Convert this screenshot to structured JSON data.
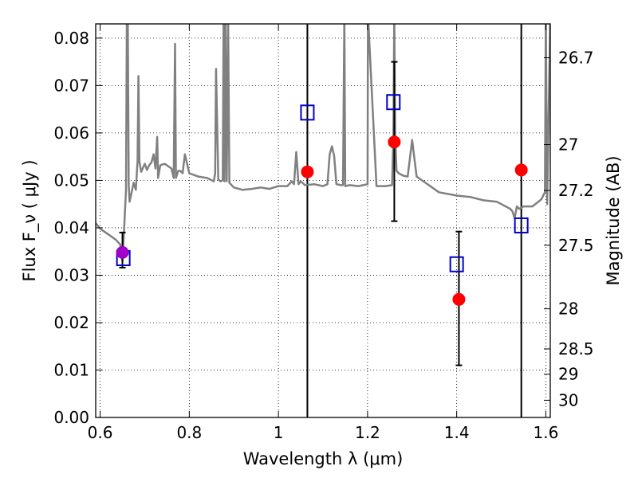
{
  "chart_data": {
    "type": "scatter",
    "xlabel": "Wavelength  λ (μm)",
    "ylabel": "Flux  F_ν  ( μJy )",
    "y2label": "Magnitude (AB)",
    "xlim": [
      0.59,
      1.61
    ],
    "ylim": [
      0.0,
      0.083
    ],
    "xticks": [
      0.6,
      0.8,
      1.0,
      1.2,
      1.4,
      1.6
    ],
    "xtick_labels": [
      "0.6",
      "0.8",
      "1",
      "1.2",
      "1.4",
      "1.6"
    ],
    "yticks": [
      0.0,
      0.01,
      0.02,
      0.03,
      0.04,
      0.05,
      0.06,
      0.07,
      0.08
    ],
    "ytick_labels": [
      "0.00",
      "0.01",
      "0.02",
      "0.03",
      "0.04",
      "0.05",
      "0.06",
      "0.07",
      "0.08"
    ],
    "magnitude_ticks": [
      "26.7",
      "27",
      "27.2",
      "27.5",
      "28",
      "28.5",
      "29",
      "30"
    ],
    "grid": true,
    "vertical_lines": [
      1.065,
      1.545
    ],
    "colors": {
      "model": "#808080",
      "observed": "#ff0000",
      "first_observed": "#a000c8",
      "synthetic": "#0000cc",
      "errorbar": "#000000"
    },
    "model_spectrum": {
      "x": [
        0.59,
        0.6,
        0.62,
        0.635,
        0.645,
        0.65,
        0.655,
        0.658,
        0.66,
        0.662,
        0.664,
        0.666,
        0.67,
        0.675,
        0.68,
        0.684,
        0.686,
        0.688,
        0.692,
        0.7,
        0.705,
        0.71,
        0.715,
        0.72,
        0.724,
        0.728,
        0.73,
        0.735,
        0.745,
        0.76,
        0.765,
        0.768,
        0.77,
        0.775,
        0.78,
        0.785,
        0.79,
        0.8,
        0.82,
        0.84,
        0.855,
        0.858,
        0.86,
        0.865,
        0.87,
        0.875,
        0.877,
        0.879,
        0.881,
        0.884,
        0.887,
        0.89,
        0.893,
        0.9,
        0.92,
        0.94,
        0.96,
        0.98,
        1.0,
        1.02,
        1.03,
        1.035,
        1.04,
        1.045,
        1.05,
        1.06,
        1.08,
        1.1,
        1.11,
        1.115,
        1.12,
        1.125,
        1.13,
        1.14,
        1.145,
        1.148,
        1.15,
        1.16,
        1.18,
        1.2,
        1.201,
        1.22,
        1.24,
        1.255,
        1.258,
        1.26,
        1.262,
        1.265,
        1.27,
        1.28,
        1.29,
        1.3,
        1.31,
        1.33,
        1.36,
        1.4,
        1.43,
        1.46,
        1.49,
        1.51,
        1.52,
        1.525,
        1.53,
        1.535,
        1.54,
        1.55,
        1.57,
        1.59,
        1.598,
        1.6,
        1.603,
        1.61
      ],
      "y": [
        0.041,
        0.0398,
        0.0385,
        0.0375,
        0.0365,
        0.033,
        0.042,
        0.048,
        0.085,
        0.085,
        0.049,
        0.0455,
        0.0472,
        0.0495,
        0.048,
        0.054,
        0.072,
        0.054,
        0.0518,
        0.0535,
        0.0522,
        0.0532,
        0.0538,
        0.0555,
        0.0525,
        0.0592,
        0.0505,
        0.0532,
        0.0535,
        0.0525,
        0.0505,
        0.0788,
        0.0505,
        0.052,
        0.052,
        0.0515,
        0.0555,
        0.0515,
        0.0508,
        0.0505,
        0.0498,
        0.0515,
        0.0735,
        0.0502,
        0.0498,
        0.05,
        0.085,
        0.0498,
        0.085,
        0.0498,
        0.085,
        0.0495,
        0.0492,
        0.0485,
        0.048,
        0.0482,
        0.0485,
        0.0482,
        0.0488,
        0.0488,
        0.0498,
        0.0492,
        0.056,
        0.0492,
        0.0498,
        0.049,
        0.0492,
        0.0488,
        0.0492,
        0.0555,
        0.0572,
        0.0552,
        0.0492,
        0.049,
        0.049,
        0.085,
        0.0488,
        0.049,
        0.0488,
        0.0492,
        0.085,
        0.0488,
        0.0488,
        0.049,
        0.0595,
        0.085,
        0.0595,
        0.052,
        0.0515,
        0.051,
        0.0508,
        0.0585,
        0.0508,
        0.0495,
        0.0475,
        0.0468,
        0.0465,
        0.0458,
        0.0455,
        0.0445,
        0.044,
        0.0435,
        0.042,
        0.0445,
        0.044,
        0.0445,
        0.0445,
        0.046,
        0.0475,
        0.085,
        0.045,
        0.085
      ]
    },
    "series": [
      {
        "marker": "circle",
        "x": [
          0.65,
          1.065,
          1.26,
          1.405,
          1.545
        ],
        "y": [
          0.0348,
          0.0518,
          0.0581,
          0.0249,
          0.0522
        ],
        "yerr_low": [
          0.0032,
          null,
          0.0167,
          0.0139,
          null
        ],
        "yerr_high": [
          0.0042,
          null,
          0.0169,
          0.0143,
          null
        ]
      },
      {
        "marker": "square",
        "x": [
          0.652,
          1.065,
          1.258,
          1.4,
          1.545
        ],
        "y": [
          0.0336,
          0.0643,
          0.0665,
          0.0323,
          0.0405
        ]
      }
    ]
  }
}
